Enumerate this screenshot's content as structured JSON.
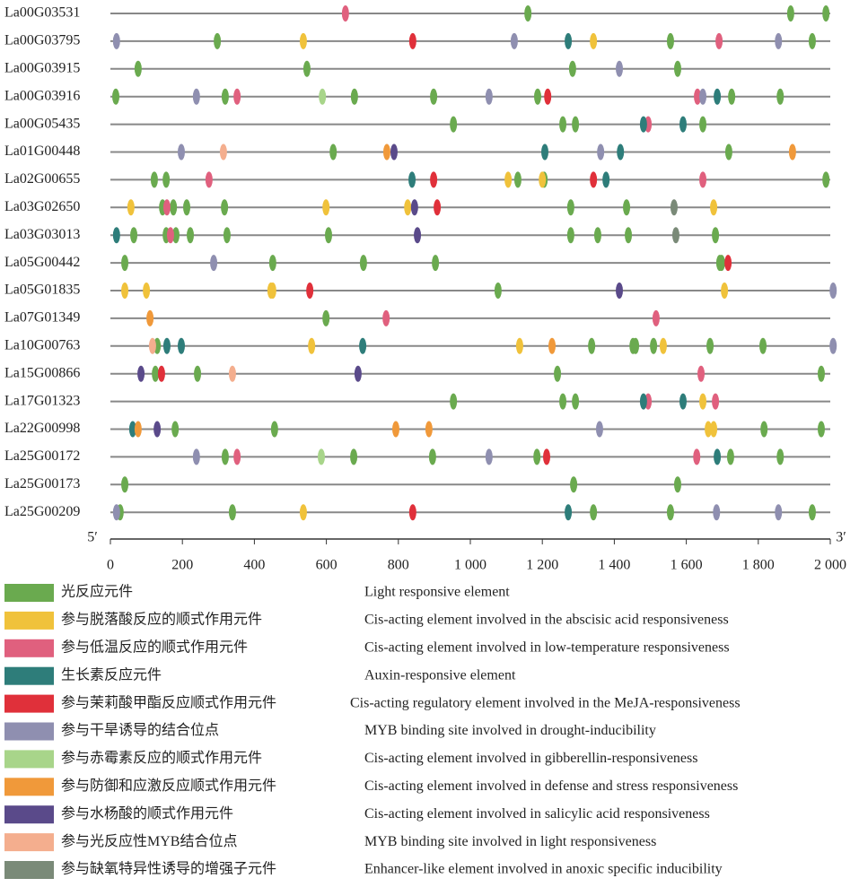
{
  "chart_data": {
    "type": "promoter-elements",
    "categories": [
      "La00G03531",
      "La00G03795",
      "La00G03915",
      "La00G03916",
      "La00G05435",
      "La01G00448",
      "La02G00655",
      "La03G02650",
      "La03G03013",
      "La05G00442",
      "La05G01835",
      "La07G01349",
      "La10G00763",
      "La15G00866",
      "La17G01323",
      "La22G00998",
      "La25G00172",
      "La25G00173",
      "La25G00209"
    ],
    "start_label": "5′",
    "end_label": "3′",
    "xlim": [
      0,
      2000
    ],
    "xticks": [
      0,
      200,
      400,
      600,
      800,
      {
        "value": 1000,
        "label": "1 000"
      },
      {
        "value": 1200,
        "label": "1 200"
      },
      {
        "value": 1400,
        "label": "1 400"
      },
      {
        "value": 1600,
        "label": "1 600"
      },
      {
        "value": 1800,
        "label": "1 800"
      },
      {
        "value": 2000,
        "label": "2 000"
      }
    ],
    "series": [
      {
        "name": "光反应元件",
        "description": "Light responsive element",
        "color": "#6aaa4f",
        "positions": [
          [
            1160,
            1890,
            1988
          ],
          [
            297,
            1556,
            1950
          ],
          [
            77,
            546,
            1284,
            1576
          ],
          [
            15,
            319,
            678,
            898,
            1187,
            1726,
            1861
          ],
          [
            953,
            1257,
            1292,
            1646
          ],
          [
            619,
            1718
          ],
          [
            122,
            155,
            1132,
            1205,
            1988
          ],
          [
            145,
            175,
            212,
            317,
            1279,
            1434
          ],
          [
            65,
            155,
            182,
            222,
            324,
            606,
            1279,
            1354,
            1439,
            1681
          ],
          [
            40,
            451,
            703,
            903,
            1693,
            1698
          ],
          [
            1077
          ],
          [
            599
          ],
          [
            130,
            1337,
            1452,
            1459,
            1509,
            1666,
            1813
          ],
          [
            125,
            242,
            1242,
            1975
          ],
          [
            953,
            1257,
            1292
          ],
          [
            180,
            456,
            1816,
            1975
          ],
          [
            319,
            676,
            895,
            1185,
            1723,
            1861
          ],
          [
            40,
            1287,
            1576
          ],
          [
            27,
            339,
            1342,
            1556,
            1950
          ]
        ]
      },
      {
        "name": "参与脱落酸反应的顺式作用元件",
        "description": "Cis-acting element involved in the abscisic acid responsiveness",
        "color": "#f0c23b",
        "positions": [
          [],
          [
            536,
            1342
          ],
          [],
          [],
          [],
          [],
          [
            1105,
            1200
          ],
          [
            57,
            599,
            826,
            1676
          ],
          [],
          [],
          [
            40,
            100,
            446,
            451,
            1706
          ],
          [],
          [
            559,
            1137,
            1536
          ],
          [],
          [
            1646
          ],
          [
            1661,
            1676
          ],
          [],
          [],
          [
            536
          ]
        ]
      },
      {
        "name": "参与低温反应的顺式作用元件",
        "description": "Cis-acting element involved in low-temperature responsiveness",
        "color": "#e0607e",
        "positions": [
          [
            653
          ],
          [
            1691
          ],
          [],
          [
            352,
            1631
          ],
          [
            1494
          ],
          [],
          [
            274,
            1646
          ],
          [
            157
          ],
          [
            167
          ],
          [],
          [],
          [
            766,
            1516
          ],
          [],
          [
            1641
          ],
          [
            1494,
            1681
          ],
          [],
          [
            352,
            1629
          ],
          [],
          []
        ]
      },
      {
        "name": "生长素反应元件",
        "description": "Auxin-responsive element",
        "color": "#2e7d7a",
        "positions": [
          [],
          [
            1272
          ],
          [],
          [
            1686
          ],
          [
            1481,
            1591
          ],
          [
            1207,
            1417
          ],
          [
            838,
            1377
          ],
          [],
          [
            17
          ],
          [],
          [],
          [],
          [
            157,
            197,
            701
          ],
          [],
          [
            1481,
            1591
          ],
          [
            62
          ],
          [
            1686
          ],
          [],
          [
            1272
          ]
        ]
      },
      {
        "name": "参与茉莉酸甲酯反应顺式作用元件",
        "description": "Cis-acting regulatory element involved in the MeJA-responsiveness",
        "color": "#e0303a",
        "positions": [
          [],
          [
            840
          ],
          [],
          [
            1215
          ],
          [],
          [],
          [
            898,
            1342
          ],
          [
            908
          ],
          [],
          [
            1716
          ],
          [
            554
          ],
          [],
          [],
          [
            142
          ],
          [],
          [],
          [
            1212
          ],
          [],
          [
            840
          ]
        ]
      },
      {
        "name": "参与干旱诱导的结合位点",
        "description": "MYB binding site involved in drought-inducibility",
        "color": "#8f8fb0",
        "positions": [
          [],
          [
            17,
            1122,
            1856
          ],
          [
            1414
          ],
          [
            239,
            1052,
            1646
          ],
          [],
          [
            197,
            1362
          ],
          [],
          [],
          [],
          [
            287
          ],
          [
            2008
          ],
          [],
          [
            2008
          ],
          [],
          [],
          [
            1359
          ],
          [
            239,
            1052
          ],
          [],
          [
            17,
            1684,
            1856
          ]
        ]
      },
      {
        "name": "参与赤霉素反应的顺式作用元件",
        "description": "Cis-acting element involved in gibberellin-responsiveness",
        "color": "#a8d58a",
        "positions": [
          [],
          [],
          [],
          [
            589
          ],
          [],
          [],
          [],
          [],
          [],
          [],
          [],
          [],
          [],
          [],
          [],
          [],
          [
            586
          ],
          [],
          []
        ]
      },
      {
        "name": "参与防御和应激反应顺式作用元件",
        "description": "Cis-acting element involved in defense and stress responsiveness",
        "color": "#f0993a",
        "positions": [
          [],
          [],
          [],
          [],
          [],
          [
            768,
            1895
          ],
          [],
          [],
          [],
          [],
          [],
          [
            110
          ],
          [
            1227
          ],
          [],
          [],
          [
            77,
            793,
            885
          ],
          [],
          [],
          []
        ]
      },
      {
        "name": "参与水杨酸的顺式作用元件",
        "description": "Cis-acting element involved in salicylic acid responsiveness",
        "color": "#5a4a8a",
        "positions": [
          [],
          [],
          [],
          [],
          [],
          [
            788
          ],
          [],
          [
            845
          ],
          [
            853
          ],
          [],
          [
            1414
          ],
          [],
          [],
          [
            85,
            688
          ],
          [],
          [
            130
          ],
          [],
          [],
          []
        ]
      },
      {
        "name": "参与光反应性MYB结合位点",
        "description": "MYB binding site involved in light responsiveness",
        "color": "#f4ae8e",
        "positions": [
          [],
          [],
          [],
          [],
          [],
          [
            314
          ],
          [],
          [],
          [],
          [],
          [],
          [],
          [
            117
          ],
          [
            339
          ],
          [],
          [],
          [],
          [],
          []
        ]
      },
      {
        "name": "参与缺氧特异性诱导的增强子元件",
        "description": "Enhancer-like element involved in anoxic specific inducibility",
        "color": "#7a8a78",
        "positions": [
          [],
          [],
          [],
          [],
          [],
          [],
          [],
          [
            1566
          ],
          [
            1571
          ],
          [],
          [],
          [],
          [],
          [],
          [],
          [],
          [],
          [],
          []
        ]
      }
    ]
  }
}
